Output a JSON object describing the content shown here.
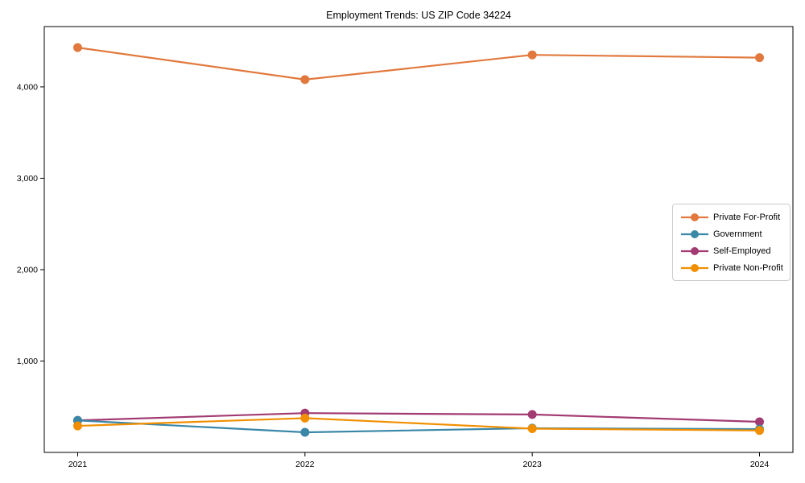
{
  "chart_data": {
    "type": "line",
    "title": "Employment Trends: US ZIP Code 34224",
    "categories": [
      "2021",
      "2022",
      "2023",
      "2024"
    ],
    "xlabel": "",
    "ylabel": "",
    "series": [
      {
        "name": "Private For-Profit",
        "color": "#E1793E",
        "values": [
          4430,
          4080,
          4350,
          4320
        ]
      },
      {
        "name": "Government",
        "color": "#3A87A8",
        "values": [
          350,
          220,
          265,
          255
        ]
      },
      {
        "name": "Self-Employed",
        "color": "#A23B72",
        "values": [
          350,
          430,
          415,
          335
        ]
      },
      {
        "name": "Private Non-Profit",
        "color": "#F18F01",
        "values": [
          290,
          375,
          260,
          240
        ]
      }
    ],
    "ylim": [
      0,
      4660
    ],
    "yticks": [
      1000,
      2000,
      3000,
      4000
    ],
    "ytick_labels": [
      "1,000",
      "2,000",
      "3,000",
      "4,000"
    ],
    "grid": false,
    "legend_position": "center-right",
    "marker": "circle"
  }
}
